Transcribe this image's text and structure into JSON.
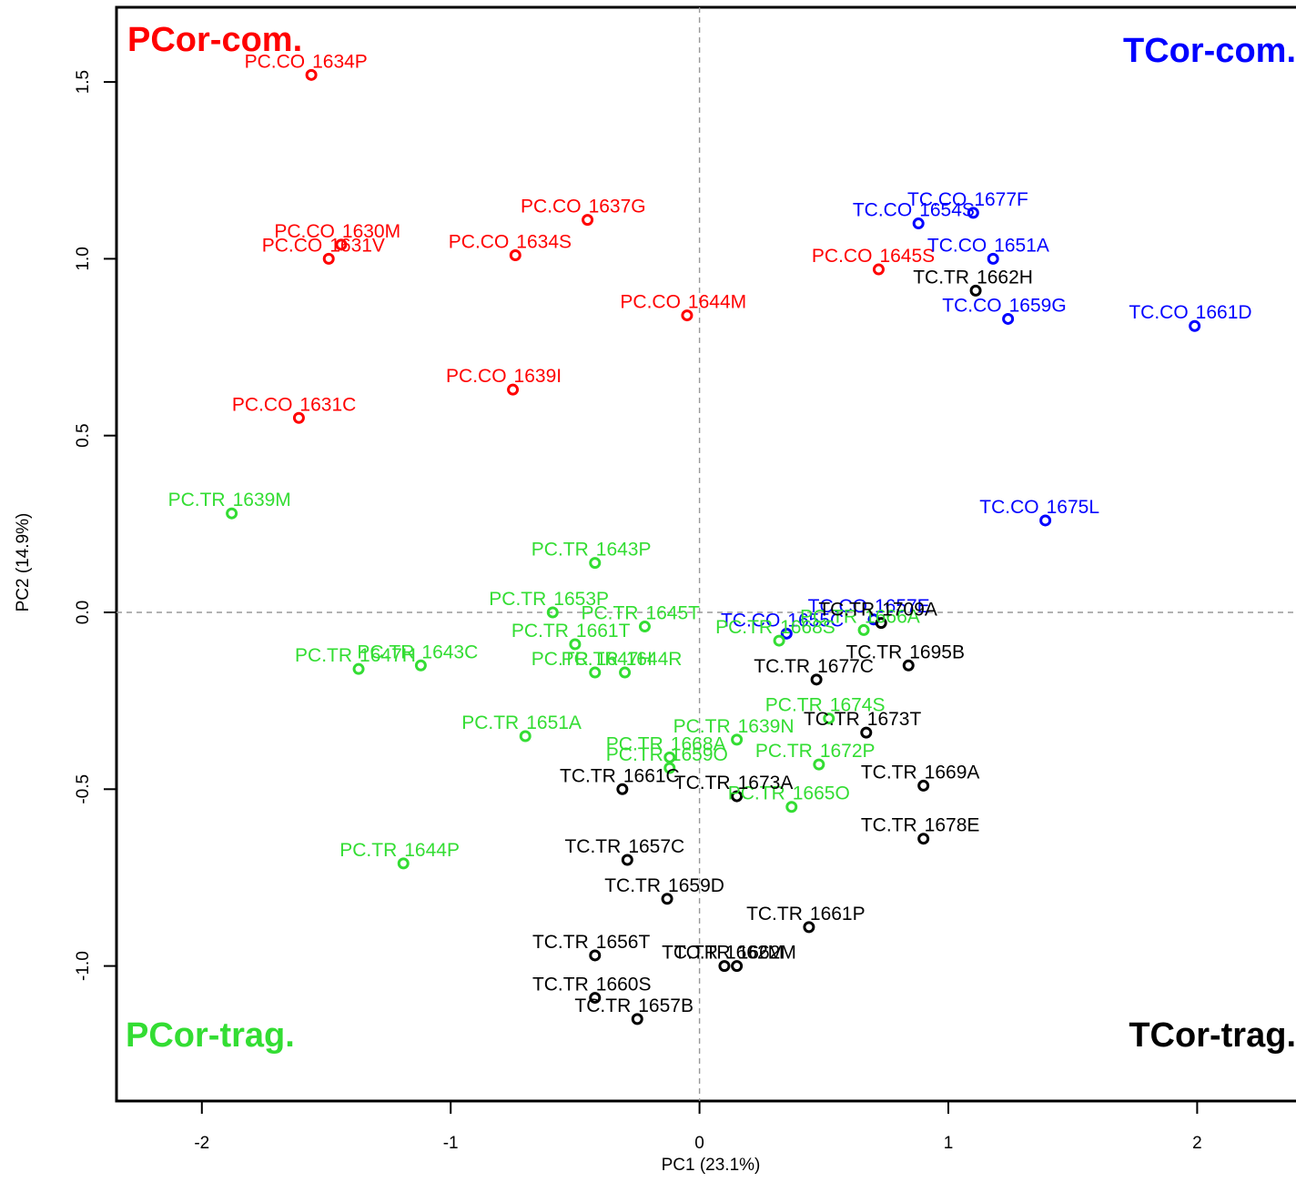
{
  "chart_data": {
    "type": "scatter",
    "xlabel": "PC1 (23.1%)",
    "ylabel": "PC2 (14.9%)",
    "xlim": [
      -2.35,
      2.45
    ],
    "ylim": [
      -1.36,
      1.72
    ],
    "xticks": [
      -2,
      -1,
      0,
      1,
      2
    ],
    "yticks": [
      -1.0,
      -0.5,
      0.0,
      0.5,
      1.0,
      1.5
    ],
    "reference_lines": {
      "x": 0,
      "y": 0
    },
    "group_labels": [
      {
        "text": "PCor-com.",
        "color": "#ff0000",
        "corner": "top-left"
      },
      {
        "text": "TCor-com.",
        "color": "#0000ff",
        "corner": "top-right"
      },
      {
        "text": "PCor-trag.",
        "color": "#33dd33",
        "corner": "bottom-left"
      },
      {
        "text": "TCor-trag.",
        "color": "#000000",
        "corner": "bottom-right"
      }
    ],
    "series": [
      {
        "color": "#ff0000",
        "points": [
          {
            "label": "PC.CO_1634P",
            "x": -1.56,
            "y": 1.52
          },
          {
            "label": "PC.CO_1630M",
            "x": -1.44,
            "y": 1.04
          },
          {
            "label": "PC.CO_1631V",
            "x": -1.49,
            "y": 1.0
          },
          {
            "label": "PC.CO_1637G",
            "x": -0.45,
            "y": 1.11
          },
          {
            "label": "PC.CO_1634S",
            "x": -0.74,
            "y": 1.01
          },
          {
            "label": "PC.CO_1644M",
            "x": -0.05,
            "y": 0.84
          },
          {
            "label": "PC.CO_1645S",
            "x": 0.72,
            "y": 0.97
          },
          {
            "label": "PC.CO_1639I",
            "x": -0.75,
            "y": 0.63
          },
          {
            "label": "PC.CO_1631C",
            "x": -1.61,
            "y": 0.55
          }
        ]
      },
      {
        "color": "#0000ff",
        "points": [
          {
            "label": "TC.CO_1677F",
            "x": 1.1,
            "y": 1.13
          },
          {
            "label": "TC.CO_1654S",
            "x": 0.88,
            "y": 1.1
          },
          {
            "label": "TC.CO_1651A",
            "x": 1.18,
            "y": 1.0
          },
          {
            "label": "TC.CO_1659G",
            "x": 1.24,
            "y": 0.83
          },
          {
            "label": "TC.CO_1661D",
            "x": 1.99,
            "y": 0.81
          },
          {
            "label": "TC.CO_1675L",
            "x": 1.39,
            "y": 0.26
          },
          {
            "label": "TC.CO_1657E",
            "x": 0.7,
            "y": -0.02
          },
          {
            "label": "TC.CO_1655C",
            "x": 0.35,
            "y": -0.06
          }
        ]
      },
      {
        "color": "#33dd33",
        "points": [
          {
            "label": "PC.TR_1639M",
            "x": -1.88,
            "y": 0.28
          },
          {
            "label": "PC.TR_1643P",
            "x": -0.42,
            "y": 0.14
          },
          {
            "label": "PC.TR_1653P",
            "x": -0.59,
            "y": 0.0
          },
          {
            "label": "PC.TR_1645T",
            "x": -0.22,
            "y": -0.04
          },
          {
            "label": "PC.TR_1661T",
            "x": -0.5,
            "y": -0.09
          },
          {
            "label": "PC.TR_1647H",
            "x": -1.37,
            "y": -0.16
          },
          {
            "label": "PC.TR_1643C",
            "x": -1.12,
            "y": -0.15
          },
          {
            "label": "PC.TR_1647H",
            "x": -0.42,
            "y": -0.17
          },
          {
            "label": "PC.TR_1644R",
            "x": -0.3,
            "y": -0.17
          },
          {
            "label": "PC.TR_1668S",
            "x": 0.32,
            "y": -0.08
          },
          {
            "label": "PC.TR_1666A",
            "x": 0.66,
            "y": -0.05
          },
          {
            "label": "PC.TR_1651A",
            "x": -0.7,
            "y": -0.35
          },
          {
            "label": "PC.TR_1674S",
            "x": 0.52,
            "y": -0.3
          },
          {
            "label": "PC.TR_1639N",
            "x": 0.15,
            "y": -0.36
          },
          {
            "label": "PC.TR_1668A",
            "x": -0.12,
            "y": -0.41
          },
          {
            "label": "PC.TR_1659O",
            "x": -0.12,
            "y": -0.44
          },
          {
            "label": "PC.TR_1672P",
            "x": 0.48,
            "y": -0.43
          },
          {
            "label": "PC.TR_1665O",
            "x": 0.37,
            "y": -0.55
          },
          {
            "label": "PC.TR_1644P",
            "x": -1.19,
            "y": -0.71
          }
        ]
      },
      {
        "color": "#000000",
        "points": [
          {
            "label": "TC.TR_1662H",
            "x": 1.11,
            "y": 0.91
          },
          {
            "label": "TC.TR_1709A",
            "x": 0.73,
            "y": -0.03
          },
          {
            "label": "TC.TR_1695B",
            "x": 0.84,
            "y": -0.15
          },
          {
            "label": "TC.TR_1677C",
            "x": 0.47,
            "y": -0.19
          },
          {
            "label": "TC.TR_1673T",
            "x": 0.67,
            "y": -0.34
          },
          {
            "label": "TC.TR_1661C",
            "x": -0.31,
            "y": -0.5
          },
          {
            "label": "TC.TR_1673A",
            "x": 0.15,
            "y": -0.52
          },
          {
            "label": "TC.TR_1669A",
            "x": 0.9,
            "y": -0.49
          },
          {
            "label": "TC.TR_1678E",
            "x": 0.9,
            "y": -0.64
          },
          {
            "label": "TC.TR_1657C",
            "x": -0.29,
            "y": -0.7
          },
          {
            "label": "TC.TR_1659D",
            "x": -0.13,
            "y": -0.81
          },
          {
            "label": "TC.TR_1661P",
            "x": 0.44,
            "y": -0.89
          },
          {
            "label": "TC.TR_1656T",
            "x": -0.42,
            "y": -0.97
          },
          {
            "label": "TC.TR_1662M",
            "x": 0.1,
            "y": -1.0
          },
          {
            "label": "TC.TR_1662M",
            "x": 0.15,
            "y": -1.0
          },
          {
            "label": "TC.TR_1660S",
            "x": -0.42,
            "y": -1.09
          },
          {
            "label": "TC.TR_1657B",
            "x": -0.25,
            "y": -1.15
          }
        ]
      }
    ]
  }
}
